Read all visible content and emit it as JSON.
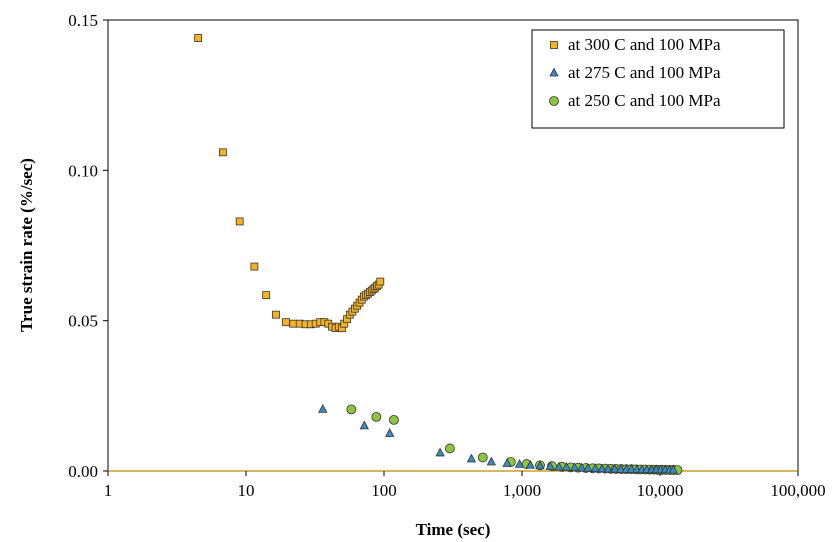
{
  "chart_data": {
    "type": "scatter",
    "title": "",
    "xlabel": "Time (sec)",
    "ylabel": "True strain rate (%/sec)",
    "xscale": "log",
    "xlim": [
      1,
      100000
    ],
    "ylim": [
      0,
      0.15
    ],
    "x_ticks": [
      1,
      10,
      100,
      1000,
      10000,
      100000
    ],
    "x_tick_labels": [
      "1",
      "10",
      "100",
      "1,000",
      "10,000",
      "100,000"
    ],
    "y_ticks": [
      0,
      0.05,
      0.1,
      0.15
    ],
    "y_tick_labels": [
      "0.00",
      "0.05",
      "0.10",
      "0.15"
    ],
    "grid": false,
    "legend_position": "top-right",
    "baseline_color": "#c9a227",
    "series": [
      {
        "name": "at 300 C and 100 MPa",
        "marker": "square",
        "color": "#f5b324",
        "points": [
          [
            4.5,
            0.144
          ],
          [
            6.8,
            0.106
          ],
          [
            9.0,
            0.083
          ],
          [
            11.5,
            0.068
          ],
          [
            14.0,
            0.0585
          ],
          [
            16.5,
            0.052
          ],
          [
            19.5,
            0.0495
          ],
          [
            22.0,
            0.049
          ],
          [
            24.5,
            0.049
          ],
          [
            27.0,
            0.0488
          ],
          [
            29.5,
            0.0488
          ],
          [
            32.0,
            0.049
          ],
          [
            34.5,
            0.0495
          ],
          [
            37.0,
            0.0495
          ],
          [
            39.5,
            0.049
          ],
          [
            42.0,
            0.048
          ],
          [
            44.5,
            0.0475
          ],
          [
            47.0,
            0.048
          ],
          [
            49.5,
            0.0475
          ],
          [
            51.5,
            0.049
          ],
          [
            54.0,
            0.0505
          ],
          [
            56.5,
            0.052
          ],
          [
            59.0,
            0.053
          ],
          [
            61.5,
            0.054
          ],
          [
            64.0,
            0.055
          ],
          [
            66.5,
            0.056
          ],
          [
            69.0,
            0.057
          ],
          [
            71.5,
            0.058
          ],
          [
            74.0,
            0.0585
          ],
          [
            76.5,
            0.059
          ],
          [
            79.0,
            0.0595
          ],
          [
            81.5,
            0.06
          ],
          [
            84.0,
            0.0605
          ],
          [
            86.5,
            0.061
          ],
          [
            89.0,
            0.0615
          ],
          [
            91.5,
            0.062
          ],
          [
            94.0,
            0.063
          ]
        ]
      },
      {
        "name": "at 275 C and 100 MPa",
        "marker": "triangle",
        "color": "#3a8cc0",
        "points": [
          [
            36,
            0.0205
          ],
          [
            72,
            0.015
          ],
          [
            110,
            0.0125
          ],
          [
            255,
            0.006
          ],
          [
            430,
            0.004
          ],
          [
            600,
            0.003
          ],
          [
            780,
            0.0025
          ],
          [
            960,
            0.0022
          ],
          [
            1150,
            0.0019
          ],
          [
            1350,
            0.0017
          ],
          [
            1600,
            0.0015
          ],
          [
            1850,
            0.0013
          ],
          [
            2100,
            0.0012
          ],
          [
            2400,
            0.0011
          ],
          [
            2700,
            0.001
          ],
          [
            3000,
            0.0009
          ],
          [
            3400,
            0.0008
          ],
          [
            3800,
            0.0007
          ],
          [
            4200,
            0.00065
          ],
          [
            4700,
            0.0006
          ],
          [
            5200,
            0.00055
          ],
          [
            5700,
            0.0005
          ],
          [
            6200,
            0.0005
          ],
          [
            6800,
            0.00045
          ],
          [
            7400,
            0.00045
          ],
          [
            8000,
            0.0004
          ],
          [
            8700,
            0.0004
          ],
          [
            9400,
            0.0004
          ],
          [
            10100,
            0.00035
          ],
          [
            10900,
            0.00035
          ],
          [
            11700,
            0.0003
          ],
          [
            12500,
            0.0003
          ]
        ]
      },
      {
        "name": "at 250 C and 100 MPa",
        "marker": "circle",
        "color": "#8cc63f",
        "points": [
          [
            58,
            0.0205
          ],
          [
            88,
            0.018
          ],
          [
            118,
            0.017
          ],
          [
            300,
            0.0075
          ],
          [
            520,
            0.0045
          ],
          [
            830,
            0.003
          ],
          [
            1080,
            0.0023
          ],
          [
            1350,
            0.0019
          ],
          [
            1650,
            0.0016
          ],
          [
            1950,
            0.0014
          ],
          [
            2250,
            0.0012
          ],
          [
            2550,
            0.0011
          ],
          [
            2900,
            0.001
          ],
          [
            3250,
            0.0009
          ],
          [
            3600,
            0.00085
          ],
          [
            4000,
            0.0008
          ],
          [
            4400,
            0.00075
          ],
          [
            4800,
            0.0007
          ],
          [
            5250,
            0.00065
          ],
          [
            5700,
            0.0006
          ],
          [
            6200,
            0.0006
          ],
          [
            6700,
            0.00055
          ],
          [
            7200,
            0.0005
          ],
          [
            7800,
            0.0005
          ],
          [
            8400,
            0.00045
          ],
          [
            9000,
            0.00045
          ],
          [
            9600,
            0.0004
          ],
          [
            10300,
            0.0004
          ],
          [
            11000,
            0.0004
          ],
          [
            11800,
            0.00035
          ],
          [
            12600,
            0.00035
          ],
          [
            13400,
            0.0003
          ]
        ]
      }
    ]
  }
}
